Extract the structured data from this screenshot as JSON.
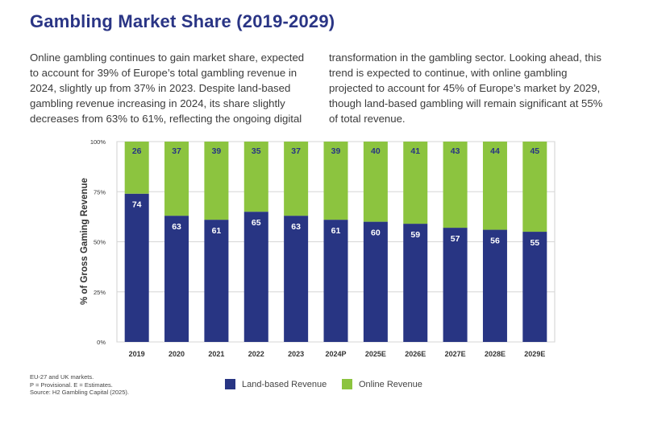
{
  "header": {
    "title": "Gambling Market Share (2019-2029)"
  },
  "description": {
    "left": "Online gambling continues to gain market share, expected to account for 39% of Europe’s total gambling revenue in 2024, slightly up from 37% in 2023. Despite land-based gambling revenue increasing in 2024, its share slightly decreases from 63% to 61%, reflecting the ongoing digital",
    "right": "transformation in the gambling sector. Looking ahead, this trend is expected to continue, with online gambling projected to account for 45% of Europe’s market by 2029, though land-based gambling will remain significant at 55% of total revenue."
  },
  "colors": {
    "land": "#283583",
    "online": "#8cc43f",
    "title": "#2a3585"
  },
  "chart_data": {
    "type": "bar",
    "stacked": true,
    "categories": [
      "2019",
      "2020",
      "2021",
      "2022",
      "2023",
      "2024P",
      "2025E",
      "2026E",
      "2027E",
      "2028E",
      "2029E"
    ],
    "series": [
      {
        "name": "Land-based Revenue",
        "values": [
          74,
          63,
          61,
          65,
          63,
          61,
          60,
          59,
          57,
          56,
          55
        ]
      },
      {
        "name": "Online Revenue",
        "values": [
          26,
          37,
          39,
          35,
          37,
          39,
          40,
          41,
          43,
          44,
          45
        ]
      }
    ],
    "ylabel": "% of Gross Gaming Revenue",
    "xlabel": "",
    "ylim": [
      0,
      100
    ],
    "yticks": [
      0,
      25,
      50,
      75,
      100
    ],
    "ytick_labels": [
      "0%",
      "25%",
      "50%",
      "75%",
      "100%"
    ],
    "grid": true,
    "legend": "bottom"
  },
  "footnotes": [
    "EU-27 and UK markets.",
    "P = Provisional. E = Estimates.",
    "Source: H2 Gambling Capital (2025)."
  ],
  "legend": {
    "land_label": "Land-based Revenue",
    "online_label": "Online Revenue"
  }
}
